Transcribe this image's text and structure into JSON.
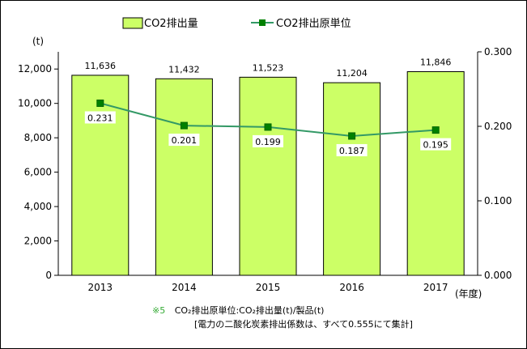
{
  "chart_data": {
    "type": "bar",
    "categories": [
      "2013",
      "2014",
      "2015",
      "2016",
      "2017"
    ],
    "series": [
      {
        "name": "CO2排出量",
        "type": "bar",
        "axis": "left",
        "values": [
          11636,
          11432,
          11523,
          11204,
          11846
        ],
        "labels": [
          "11,636",
          "11,432",
          "11,523",
          "11,204",
          "11,846"
        ],
        "color": "#ccff66"
      },
      {
        "name": "CO2排出原単位",
        "type": "line",
        "axis": "right",
        "values": [
          0.231,
          0.201,
          0.199,
          0.187,
          0.195
        ],
        "labels": [
          "0.231",
          "0.201",
          "0.199",
          "0.187",
          "0.195"
        ],
        "color": "#339966"
      }
    ],
    "y_left": {
      "label": "(t)",
      "ylim": [
        0,
        13000
      ],
      "ticks": [
        0,
        2000,
        4000,
        6000,
        8000,
        10000,
        12000
      ],
      "tick_labels": [
        "0",
        "2,000",
        "4,000",
        "6,000",
        "8,000",
        "10,000",
        "12,000"
      ]
    },
    "y_right": {
      "ylim": [
        0,
        0.3
      ],
      "ticks": [
        0,
        0.1,
        0.2,
        0.3
      ],
      "tick_labels": [
        "0.000",
        "0.100",
        "0.200",
        "0.300"
      ]
    },
    "xlabel": "(年度)",
    "grid": false,
    "legend": "top"
  },
  "notes": {
    "mark": "※5",
    "line1": "CO₂排出原単位:CO₂排出量(t)/製品(t)",
    "line2": "[電力の二酸化炭素排出係数は、すべて0.555にて集計]"
  }
}
